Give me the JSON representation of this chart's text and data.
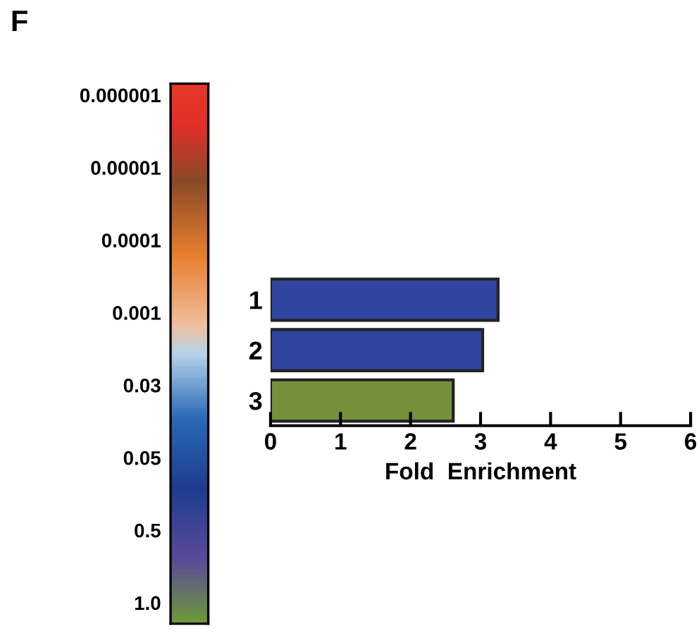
{
  "chart_data": {
    "type": "bar",
    "orientation": "horizontal",
    "title": "F",
    "xlabel": "Fold  Enrichment",
    "categories": [
      "1",
      "2",
      "3"
    ],
    "values": [
      3.25,
      3.03,
      2.61
    ],
    "colors": [
      "#2f45a0",
      "#2f45a0",
      "#77913a"
    ],
    "xlim": [
      0,
      6
    ],
    "xticks": [
      0,
      1,
      2,
      3,
      4,
      5,
      6
    ],
    "annotations": [
      "0.000001",
      "0.00001",
      "0.0001",
      "0.001",
      "0.03",
      "0.05",
      "0.5",
      "1.0"
    ],
    "grid": false,
    "legend": false
  }
}
